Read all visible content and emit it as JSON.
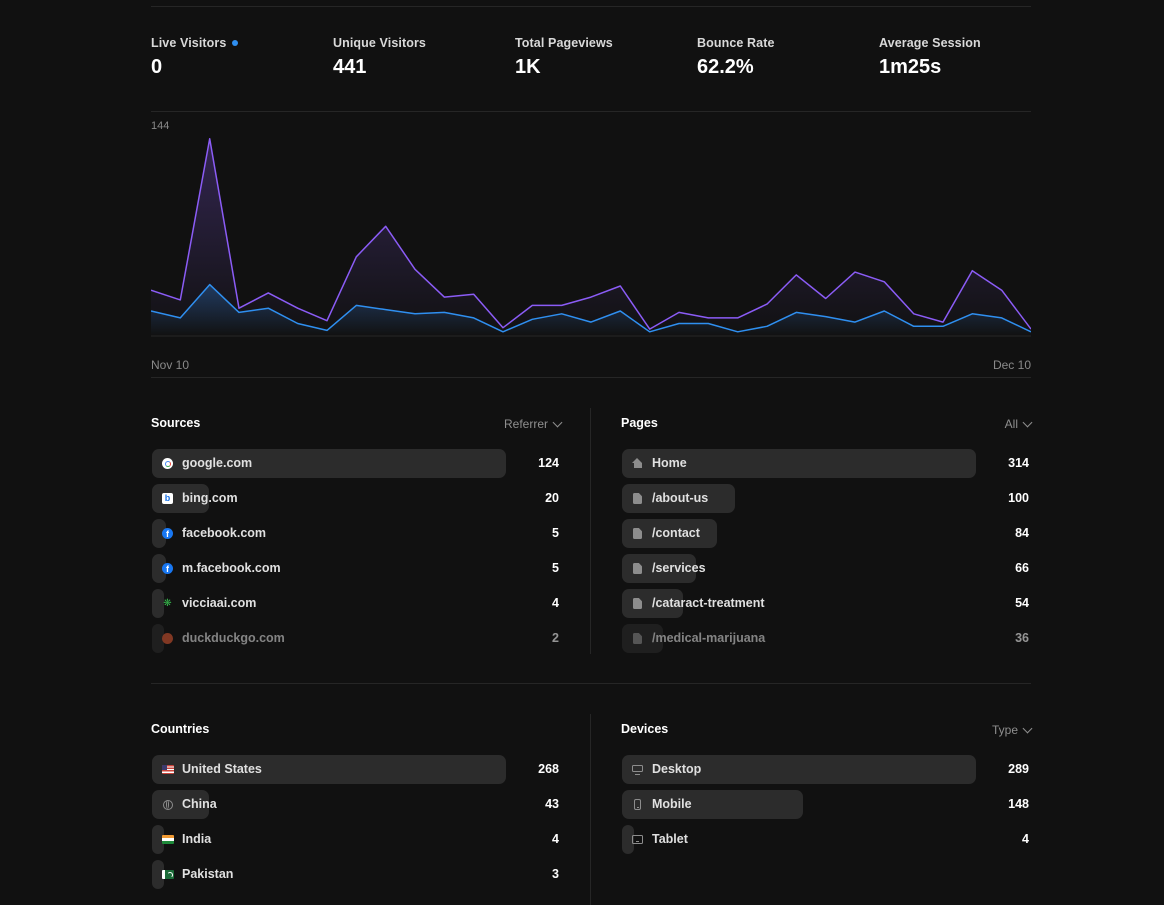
{
  "stats": [
    {
      "label": "Live Visitors",
      "value": "0",
      "live": true
    },
    {
      "label": "Unique Visitors",
      "value": "441"
    },
    {
      "label": "Total Pageviews",
      "value": "1K"
    },
    {
      "label": "Bounce Rate",
      "value": "62.2%"
    },
    {
      "label": "Average Session",
      "value": "1m25s"
    }
  ],
  "chart_data": {
    "type": "area",
    "y_max_label": "144",
    "ylim": [
      0,
      144
    ],
    "x_start_label": "Nov 10",
    "x_end_label": "Dec 10",
    "x": [
      "Nov 10",
      "Nov 11",
      "Nov 12",
      "Nov 13",
      "Nov 14",
      "Nov 15",
      "Nov 16",
      "Nov 17",
      "Nov 18",
      "Nov 19",
      "Nov 20",
      "Nov 21",
      "Nov 22",
      "Nov 23",
      "Nov 24",
      "Nov 25",
      "Nov 26",
      "Nov 27",
      "Nov 28",
      "Nov 29",
      "Nov 30",
      "Dec 1",
      "Dec 2",
      "Dec 3",
      "Dec 4",
      "Dec 5",
      "Dec 6",
      "Dec 7",
      "Dec 8",
      "Dec 9",
      "Dec 10"
    ],
    "series": [
      {
        "color": "#8b5cf6",
        "values": [
          33,
          26,
          142,
          20,
          31,
          20,
          11,
          57,
          79,
          48,
          28,
          30,
          6,
          22,
          22,
          28,
          36,
          5,
          17,
          13,
          13,
          23,
          44,
          27,
          46,
          39,
          16,
          10,
          47,
          33,
          5
        ]
      },
      {
        "color": "#2f8ff0",
        "values": [
          18,
          13,
          37,
          17,
          20,
          9,
          4,
          22,
          19,
          16,
          17,
          13,
          3,
          12,
          16,
          10,
          18,
          3,
          9,
          9,
          3,
          7,
          17,
          14,
          10,
          18,
          7,
          7,
          16,
          13,
          3
        ]
      }
    ]
  },
  "sources": {
    "title": "Sources",
    "filter": "Referrer",
    "items": [
      {
        "label": "google.com",
        "count": "124",
        "value": 124,
        "icon": "google-icon"
      },
      {
        "label": "bing.com",
        "count": "20",
        "value": 20,
        "icon": "bing-icon"
      },
      {
        "label": "facebook.com",
        "count": "5",
        "value": 5,
        "icon": "facebook-icon"
      },
      {
        "label": "m.facebook.com",
        "count": "5",
        "value": 5,
        "icon": "facebook-icon"
      },
      {
        "label": "vicciaai.com",
        "count": "4",
        "value": 4,
        "icon": "leaf-icon"
      },
      {
        "label": "duckduckgo.com",
        "count": "2",
        "value": 2,
        "icon": "duckduckgo-icon"
      }
    ]
  },
  "pages": {
    "title": "Pages",
    "filter": "All",
    "items": [
      {
        "label": "Home",
        "count": "314",
        "value": 314,
        "icon": "home-icon"
      },
      {
        "label": "/about-us",
        "count": "100",
        "value": 100,
        "icon": "page-icon"
      },
      {
        "label": "/contact",
        "count": "84",
        "value": 84,
        "icon": "page-icon"
      },
      {
        "label": "/services",
        "count": "66",
        "value": 66,
        "icon": "page-icon"
      },
      {
        "label": "/cataract-treatment",
        "count": "54",
        "value": 54,
        "icon": "page-icon"
      },
      {
        "label": "/medical-marijuana",
        "count": "36",
        "value": 36,
        "icon": "page-icon"
      }
    ]
  },
  "countries": {
    "title": "Countries",
    "items": [
      {
        "label": "United States",
        "count": "268",
        "value": 268,
        "icon": "us-flag-icon"
      },
      {
        "label": "China",
        "count": "43",
        "value": 43,
        "icon": "globe-icon"
      },
      {
        "label": "India",
        "count": "4",
        "value": 4,
        "icon": "india-flag-icon"
      },
      {
        "label": "Pakistan",
        "count": "3",
        "value": 3,
        "icon": "pakistan-flag-icon"
      }
    ]
  },
  "devices": {
    "title": "Devices",
    "filter": "Type",
    "items": [
      {
        "label": "Desktop",
        "count": "289",
        "value": 289,
        "icon": "desktop-icon"
      },
      {
        "label": "Mobile",
        "count": "148",
        "value": 148,
        "icon": "mobile-icon"
      },
      {
        "label": "Tablet",
        "count": "4",
        "value": 4,
        "icon": "tablet-icon"
      }
    ]
  }
}
